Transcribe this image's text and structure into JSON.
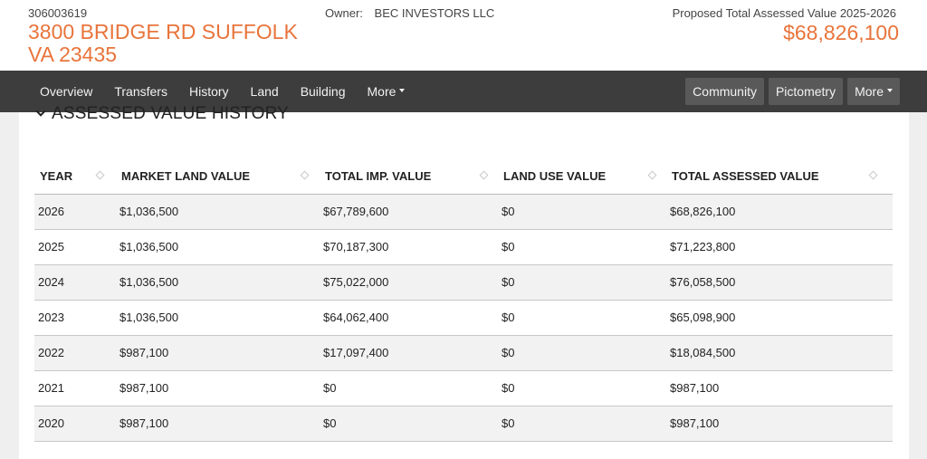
{
  "header": {
    "parcel_id": "306003619",
    "address_line1": "3800 BRIDGE RD SUFFOLK",
    "address_line2": "VA 23435",
    "owner_label": "Owner:",
    "owner_name": "BEC INVESTORS LLC",
    "value_label": "Proposed Total Assessed Value 2025-2026",
    "value_amount": "$68,826,100"
  },
  "nav": {
    "items": [
      "Overview",
      "Transfers",
      "History",
      "Land",
      "Building",
      "More"
    ],
    "buttons": [
      "Community",
      "Pictometry",
      "More"
    ]
  },
  "section": {
    "title": "ASSESSED VALUE HISTORY"
  },
  "table": {
    "headers": [
      "YEAR",
      "MARKET LAND VALUE",
      "TOTAL IMP. VALUE",
      "LAND USE VALUE",
      "TOTAL ASSESSED VALUE"
    ],
    "rows": [
      [
        "2026",
        "$1,036,500",
        "$67,789,600",
        "$0",
        "$68,826,100"
      ],
      [
        "2025",
        "$1,036,500",
        "$70,187,300",
        "$0",
        "$71,223,800"
      ],
      [
        "2024",
        "$1,036,500",
        "$75,022,000",
        "$0",
        "$76,058,500"
      ],
      [
        "2023",
        "$1,036,500",
        "$64,062,400",
        "$0",
        "$65,098,900"
      ],
      [
        "2022",
        "$987,100",
        "$17,097,400",
        "$0",
        "$18,084,500"
      ],
      [
        "2021",
        "$987,100",
        "$0",
        "$0",
        "$987,100"
      ],
      [
        "2020",
        "$987,100",
        "$0",
        "$0",
        "$987,100"
      ]
    ]
  }
}
